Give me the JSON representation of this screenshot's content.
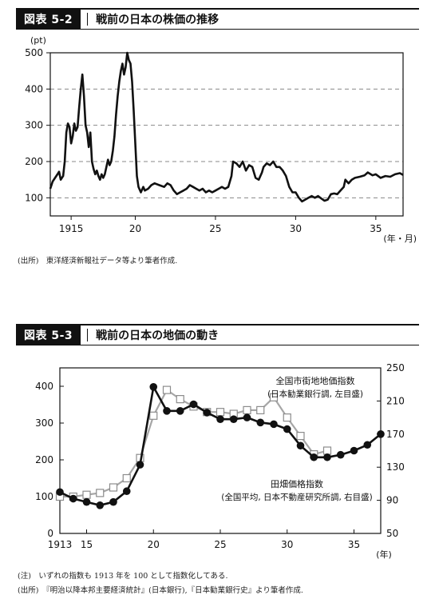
{
  "fig1": {
    "number": "図表 5-2",
    "title": "戦前の日本の株価の推移",
    "source": "(出所)　東洋経済新報社データ等より筆者作成.",
    "chart_data": {
      "type": "line",
      "ylabel": "(pt)",
      "xlabel": "(年・月)",
      "xlim": [
        1914.7,
        1936.7
      ],
      "ylim": [
        50,
        500
      ],
      "yticks": [
        100,
        200,
        300,
        400,
        500
      ],
      "xtick_values": [
        1916,
        1920,
        1925,
        1930,
        1935
      ],
      "xtick_labels": [
        "1915",
        "20",
        "25",
        "30",
        "35"
      ],
      "grid": "dashed horizontal",
      "series": [
        {
          "points": [
            [
              1914.7,
              125
            ],
            [
              1914.85,
              145
            ],
            [
              1915.0,
              155
            ],
            [
              1915.15,
              165
            ],
            [
              1915.25,
              172
            ],
            [
              1915.35,
              150
            ],
            [
              1915.5,
              160
            ],
            [
              1915.6,
              200
            ],
            [
              1915.7,
              280
            ],
            [
              1915.8,
              305
            ],
            [
              1915.9,
              295
            ],
            [
              1916.0,
              250
            ],
            [
              1916.1,
              270
            ],
            [
              1916.2,
              305
            ],
            [
              1916.3,
              285
            ],
            [
              1916.4,
              295
            ],
            [
              1916.5,
              350
            ],
            [
              1916.6,
              400
            ],
            [
              1916.7,
              440
            ],
            [
              1916.8,
              380
            ],
            [
              1916.9,
              300
            ],
            [
              1917.0,
              280
            ],
            [
              1917.1,
              240
            ],
            [
              1917.2,
              280
            ],
            [
              1917.3,
              200
            ],
            [
              1917.4,
              180
            ],
            [
              1917.5,
              165
            ],
            [
              1917.6,
              175
            ],
            [
              1917.7,
              160
            ],
            [
              1917.8,
              150
            ],
            [
              1917.9,
              165
            ],
            [
              1918.0,
              155
            ],
            [
              1918.1,
              165
            ],
            [
              1918.2,
              185
            ],
            [
              1918.3,
              205
            ],
            [
              1918.4,
              190
            ],
            [
              1918.5,
              200
            ],
            [
              1918.6,
              230
            ],
            [
              1918.7,
              270
            ],
            [
              1918.8,
              330
            ],
            [
              1918.9,
              380
            ],
            [
              1919.0,
              420
            ],
            [
              1919.1,
              450
            ],
            [
              1919.2,
              470
            ],
            [
              1919.3,
              440
            ],
            [
              1919.4,
              460
            ],
            [
              1919.5,
              500
            ],
            [
              1919.6,
              480
            ],
            [
              1919.7,
              470
            ],
            [
              1919.8,
              420
            ],
            [
              1919.9,
              340
            ],
            [
              1920.0,
              250
            ],
            [
              1920.1,
              160
            ],
            [
              1920.2,
              130
            ],
            [
              1920.35,
              115
            ],
            [
              1920.5,
              130
            ],
            [
              1920.6,
              120
            ],
            [
              1920.8,
              125
            ],
            [
              1921.0,
              135
            ],
            [
              1921.2,
              140
            ],
            [
              1921.5,
              135
            ],
            [
              1921.8,
              130
            ],
            [
              1922.0,
              140
            ],
            [
              1922.2,
              135
            ],
            [
              1922.4,
              120
            ],
            [
              1922.6,
              110
            ],
            [
              1922.8,
              115
            ],
            [
              1923.0,
              120
            ],
            [
              1923.2,
              125
            ],
            [
              1923.4,
              135
            ],
            [
              1923.6,
              130
            ],
            [
              1923.8,
              125
            ],
            [
              1924.0,
              120
            ],
            [
              1924.2,
              125
            ],
            [
              1924.4,
              115
            ],
            [
              1924.6,
              120
            ],
            [
              1924.8,
              115
            ],
            [
              1925.0,
              120
            ],
            [
              1925.2,
              125
            ],
            [
              1925.4,
              130
            ],
            [
              1925.6,
              125
            ],
            [
              1925.8,
              130
            ],
            [
              1926.0,
              160
            ],
            [
              1926.1,
              200
            ],
            [
              1926.3,
              195
            ],
            [
              1926.5,
              185
            ],
            [
              1926.7,
              200
            ],
            [
              1926.9,
              175
            ],
            [
              1927.1,
              190
            ],
            [
              1927.3,
              185
            ],
            [
              1927.5,
              155
            ],
            [
              1927.7,
              150
            ],
            [
              1927.9,
              170
            ],
            [
              1928.0,
              185
            ],
            [
              1928.2,
              195
            ],
            [
              1928.4,
              190
            ],
            [
              1928.6,
              200
            ],
            [
              1928.8,
              185
            ],
            [
              1929.0,
              185
            ],
            [
              1929.2,
              175
            ],
            [
              1929.4,
              160
            ],
            [
              1929.6,
              130
            ],
            [
              1929.8,
              115
            ],
            [
              1930.0,
              115
            ],
            [
              1930.2,
              100
            ],
            [
              1930.4,
              90
            ],
            [
              1930.6,
              95
            ],
            [
              1930.8,
              100
            ],
            [
              1931.0,
              105
            ],
            [
              1931.2,
              100
            ],
            [
              1931.4,
              105
            ],
            [
              1931.6,
              98
            ],
            [
              1931.8,
              92
            ],
            [
              1932.0,
              95
            ],
            [
              1932.2,
              110
            ],
            [
              1932.4,
              112
            ],
            [
              1932.6,
              110
            ],
            [
              1932.8,
              120
            ],
            [
              1933.0,
              130
            ],
            [
              1933.1,
              150
            ],
            [
              1933.3,
              140
            ],
            [
              1933.5,
              150
            ],
            [
              1933.7,
              155
            ],
            [
              1934.0,
              158
            ],
            [
              1934.3,
              162
            ],
            [
              1934.5,
              170
            ],
            [
              1934.8,
              162
            ],
            [
              1935.0,
              165
            ],
            [
              1935.3,
              155
            ],
            [
              1935.6,
              160
            ],
            [
              1935.9,
              158
            ],
            [
              1936.2,
              165
            ],
            [
              1936.5,
              168
            ],
            [
              1936.7,
              163
            ]
          ]
        }
      ]
    }
  },
  "fig2": {
    "number": "図表 5-3",
    "title": "戦前の日本の地価の動き",
    "note": "(注)　いずれの指数も 1913 年を 100 として指数化してある.",
    "source": "(出所)　『明治以降本邦主要経済統計』(日本銀行),『日本勧業銀行史』より筆者作成.",
    "chart_data": {
      "type": "line",
      "xlabel": "(年)",
      "xlim": [
        1913,
        1937
      ],
      "ylim": [
        0,
        450
      ],
      "yticks": [
        0,
        100,
        200,
        300,
        400
      ],
      "y2lim": [
        50,
        250
      ],
      "y2ticks": [
        50,
        90,
        130,
        170,
        210,
        250
      ],
      "xtick_values": [
        1913,
        1915,
        1920,
        1925,
        1930,
        1935
      ],
      "xtick_labels": [
        "1913",
        "15",
        "20",
        "25",
        "30",
        "35"
      ],
      "series": [
        {
          "name": "全国市街地地価指数",
          "desc": "(日本勧業銀行調, 左目盛)",
          "axis": "left",
          "marker": "open-square",
          "color": "#a6a6a6",
          "x": [
            1913,
            1914,
            1915,
            1916,
            1917,
            1918,
            1919,
            1920,
            1921,
            1922,
            1923,
            1924,
            1925,
            1926,
            1927,
            1928,
            1929,
            1930,
            1931,
            1932,
            1933
          ],
          "y": [
            100,
            100,
            105,
            110,
            125,
            150,
            205,
            320,
            390,
            365,
            345,
            330,
            330,
            325,
            335,
            335,
            370,
            315,
            265,
            215,
            225
          ]
        },
        {
          "name": "田畑価格指数",
          "desc": "(全国平均, 日本不動産研究所調, 右目盛)",
          "axis": "right",
          "marker": "filled-circle",
          "color": "#111111",
          "x": [
            1913,
            1914,
            1915,
            1916,
            1917,
            1918,
            1919,
            1920,
            1921,
            1922,
            1923,
            1924,
            1925,
            1926,
            1927,
            1928,
            1929,
            1930,
            1931,
            1932,
            1933,
            1934,
            1935,
            1936,
            1937
          ],
          "y": [
            100,
            92,
            88,
            84,
            88,
            101,
            133,
            227,
            198,
            198,
            206,
            196,
            188,
            188,
            190,
            184,
            182,
            176,
            156,
            142,
            142,
            145,
            150,
            157,
            170
          ]
        }
      ]
    }
  }
}
